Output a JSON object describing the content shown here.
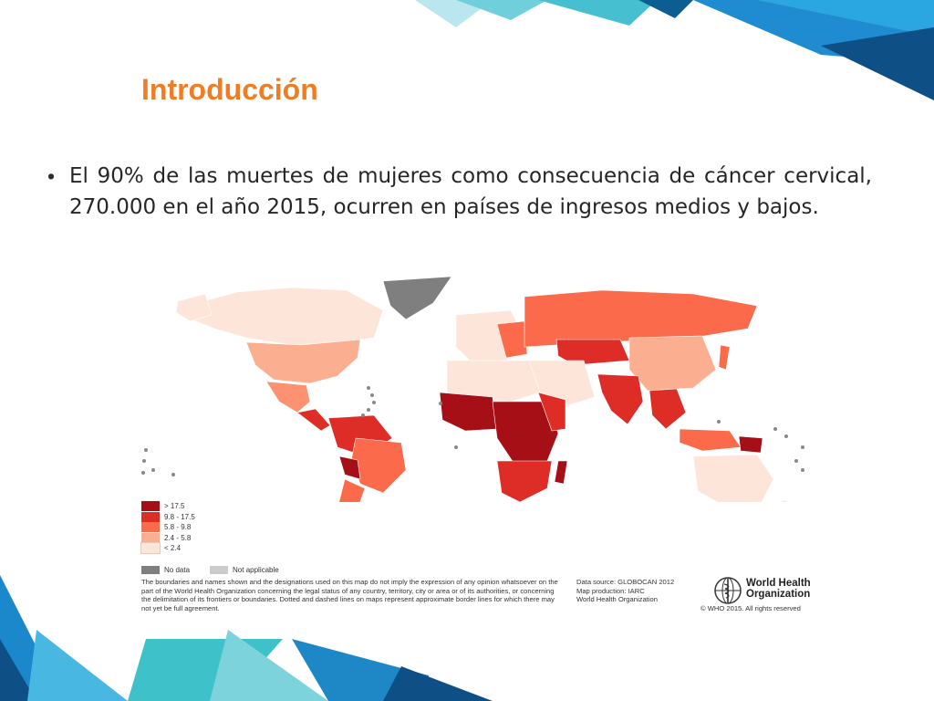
{
  "slide": {
    "title": "Introducción",
    "bullet": "El 90% de las muertes de mujeres como consecuencia de cáncer cervical, 270.000 en el año 2015, ocurren en países de ingresos medios y bajos."
  },
  "map": {
    "legend": [
      {
        "label": "> 17.5",
        "color": "#a50f15"
      },
      {
        "label": "9.8 - 17.5",
        "color": "#de2d26"
      },
      {
        "label": "5.8 - 9.8",
        "color": "#fb6a4a"
      },
      {
        "label": "2.4 - 5.8",
        "color": "#fcae91"
      },
      {
        "label": "< 2.4",
        "color": "#fee5d9"
      }
    ],
    "no_data": {
      "label": "No data",
      "color": "#7f7f7f"
    },
    "not_applicable": {
      "label": "Not applicable",
      "color": "#cccccc"
    },
    "disclaimer": "The boundaries and names shown and the designations used on this map do not imply the expression of any opinion whatsoever on the part of the World Health Organization concerning the legal status of any country, territory, city or area or of its authorities, or concerning the delimitation of its frontiers or boundaries. Dotted and dashed lines on maps represent approximate border lines for which there may not yet be full agreement.",
    "source_lines": [
      "Data source: GLOBOCAN 2012",
      "Map production: IARC",
      "World Health Organization"
    ],
    "who_name_lines": [
      "World Health",
      "Organization"
    ],
    "copyright": "© WHO 2015. All rights reserved"
  },
  "colors": {
    "accent": "#f07d23",
    "deco_blue": "#1e88c7",
    "deco_teal": "#3fc1c9"
  }
}
